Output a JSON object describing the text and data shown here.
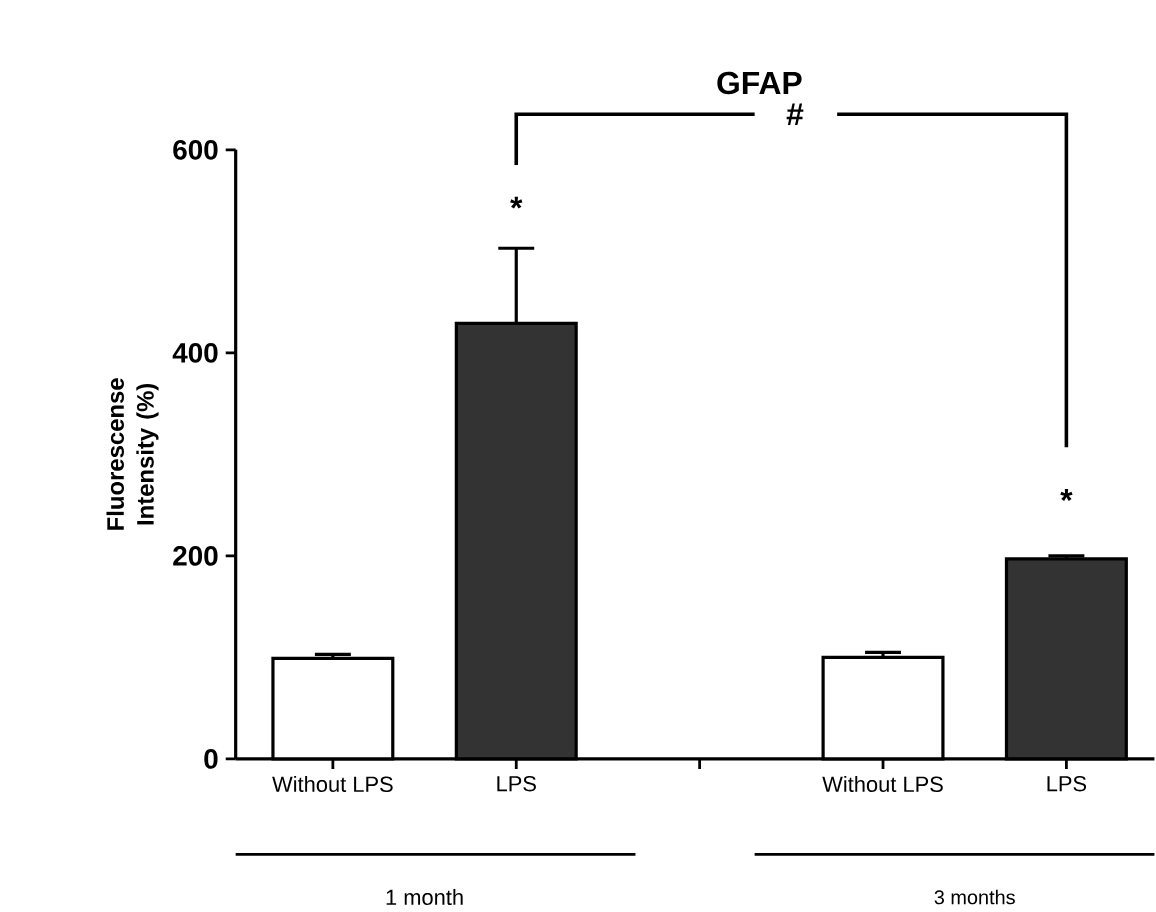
{
  "chart_data": {
    "type": "bar",
    "title": "GFAP",
    "ylabel": "Fluorescense Intensity (%)",
    "categories": [
      "Without LPS",
      "LPS",
      null,
      "Without LPS",
      "LPS"
    ],
    "values": [
      99,
      429,
      null,
      100,
      197
    ],
    "errors": [
      4,
      74,
      null,
      5,
      3
    ],
    "colors": [
      "#ffffff",
      "#333333",
      null,
      "#ffffff",
      "#333333"
    ],
    "ylim": [
      0,
      600
    ],
    "yticks": [
      0,
      200,
      400,
      600
    ],
    "annotations": [
      "*",
      "*",
      "#",
      "1 month",
      "3 months"
    ]
  }
}
